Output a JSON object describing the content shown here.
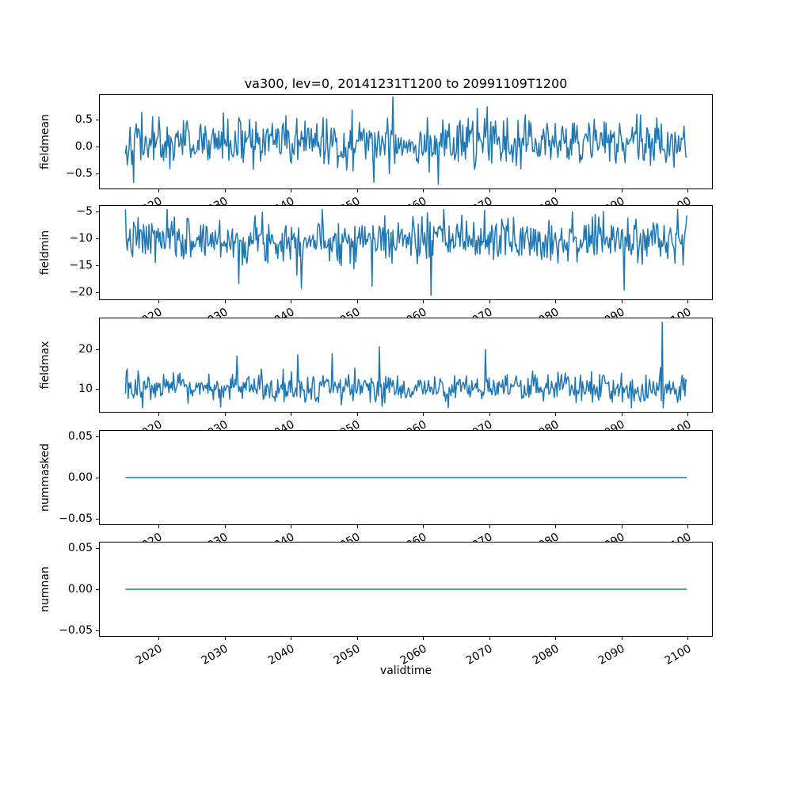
{
  "chart_data": {
    "type": "line",
    "title": "va300, lev=0, 20141231T1200 to 20991109T1200",
    "xlabel": "validtime",
    "x_start": 2014.995,
    "x_end": 2099.86,
    "n_points": 620,
    "xlim": [
      2011.0,
      2103.8
    ],
    "xticks": [
      2020,
      2030,
      2040,
      2050,
      2060,
      2070,
      2080,
      2090,
      2100
    ],
    "xtick_labels": [
      "2020",
      "2030",
      "2040",
      "2050",
      "2060",
      "2070",
      "2080",
      "2090",
      "2100"
    ],
    "line_color": "#1f77b4",
    "text_color": "#000000",
    "background": "#ffffff",
    "legend": "none",
    "grid": false,
    "subplots": [
      {
        "name": "fieldmean",
        "ylabel": "fieldmean",
        "ylim": [
          -0.8,
          0.98
        ],
        "yticks": [
          0.5,
          0.0,
          -0.5
        ],
        "ytick_labels": [
          "0.5",
          "0.0",
          "−0.5"
        ],
        "series": {
          "kind": "gaussian-noise",
          "mean": 0.08,
          "std": 0.23,
          "min": -0.72,
          "max": 0.93,
          "seed": 42
        },
        "notable_points": [
          {
            "x": 2055.4,
            "y": 0.93
          },
          {
            "x": 2052.5,
            "y": -0.67
          },
          {
            "x": 2062.3,
            "y": -0.7
          }
        ]
      },
      {
        "name": "fieldmin",
        "ylabel": "fieldmin",
        "ylim": [
          -21.5,
          -3.8
        ],
        "yticks": [
          -5,
          -10,
          -15,
          -20
        ],
        "ytick_labels": [
          "−5",
          "−10",
          "−15",
          "−20"
        ],
        "series": {
          "kind": "gaussian-noise",
          "mean": -10.2,
          "std": 2.1,
          "min": -20.6,
          "max": -4.6,
          "seed": 7
        },
        "notable_points": [
          {
            "x": 2061.2,
            "y": -20.6
          },
          {
            "x": 2041.6,
            "y": -19.3
          },
          {
            "x": 2090.4,
            "y": -19.6
          },
          {
            "x": 2032.2,
            "y": -18.4
          },
          {
            "x": 2052.3,
            "y": -18.9
          }
        ]
      },
      {
        "name": "fieldmax",
        "ylabel": "fieldmax",
        "ylim": [
          4.0,
          28.0
        ],
        "yticks": [
          20,
          10
        ],
        "ytick_labels": [
          "20",
          "10"
        ],
        "series": {
          "kind": "gaussian-noise",
          "mean": 10.1,
          "std": 1.9,
          "min": 5.2,
          "max": 26.8,
          "seed": 13
        },
        "notable_points": [
          {
            "x": 2096.2,
            "y": 26.8
          },
          {
            "x": 2053.4,
            "y": 20.6
          },
          {
            "x": 2069.4,
            "y": 19.9
          },
          {
            "x": 2041.0,
            "y": 18.6
          },
          {
            "x": 2031.8,
            "y": 18.3
          },
          {
            "x": 2046.2,
            "y": 18.9
          }
        ]
      },
      {
        "name": "nummasked",
        "ylabel": "nummasked",
        "ylim": [
          -0.058,
          0.058
        ],
        "yticks": [
          0.05,
          0.0,
          -0.05
        ],
        "ytick_labels": [
          "0.05",
          "0.00",
          "−0.05"
        ],
        "series": {
          "kind": "constant",
          "value": 0.0
        },
        "notable_points": []
      },
      {
        "name": "numnan",
        "ylabel": "numnan",
        "ylim": [
          -0.058,
          0.058
        ],
        "yticks": [
          0.05,
          0.0,
          -0.05
        ],
        "ytick_labels": [
          "0.05",
          "0.00",
          "−0.05"
        ],
        "series": {
          "kind": "constant",
          "value": 0.0
        },
        "notable_points": []
      }
    ]
  }
}
